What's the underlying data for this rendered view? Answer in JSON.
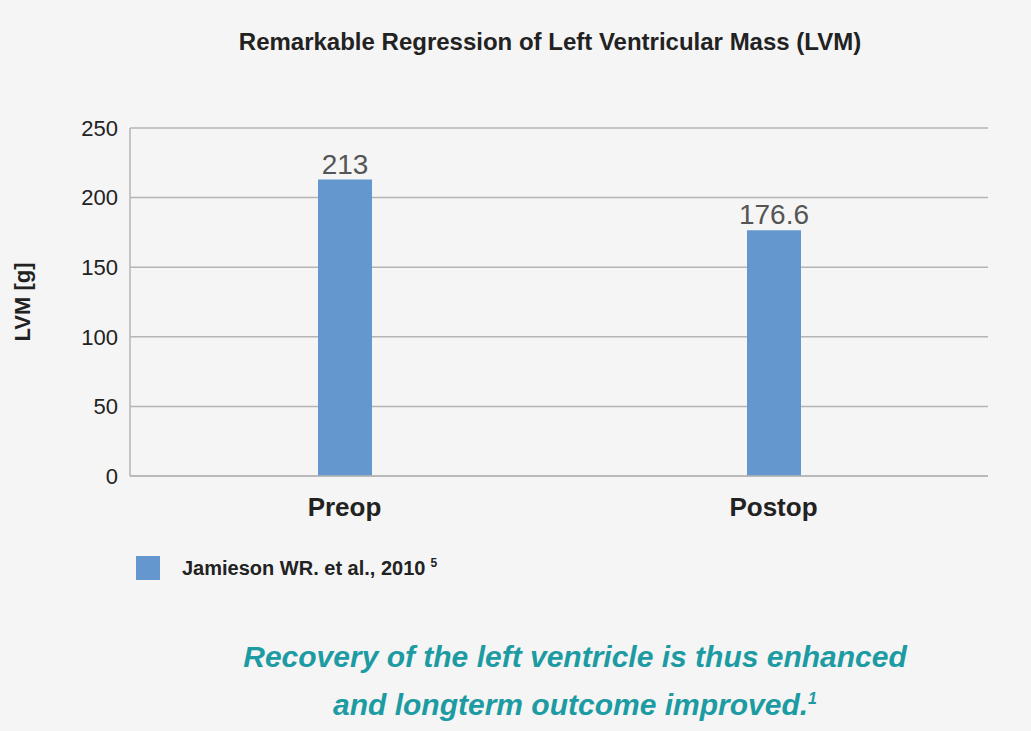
{
  "chart_data": {
    "type": "bar",
    "title": "Remarkable Regression of Left Ventricular Mass (LVM)",
    "y_label": "LVM [g]",
    "categories": [
      "Preop",
      "Postop"
    ],
    "series": [
      {
        "name": "Jamieson WR. et al., 2010",
        "name_reference": "5",
        "color": "#6497cd",
        "values": [
          213,
          176.6
        ]
      }
    ],
    "ylim": [
      0,
      250
    ],
    "yticks": [
      0,
      50,
      100,
      150,
      200,
      250
    ],
    "grid": true,
    "data_labels": true,
    "legend": "bottom left",
    "annotation": [
      "Recovery of the left ventricle is thus enhanced",
      "and longterm outcome improved."
    ],
    "annotation_reference": "1"
  }
}
